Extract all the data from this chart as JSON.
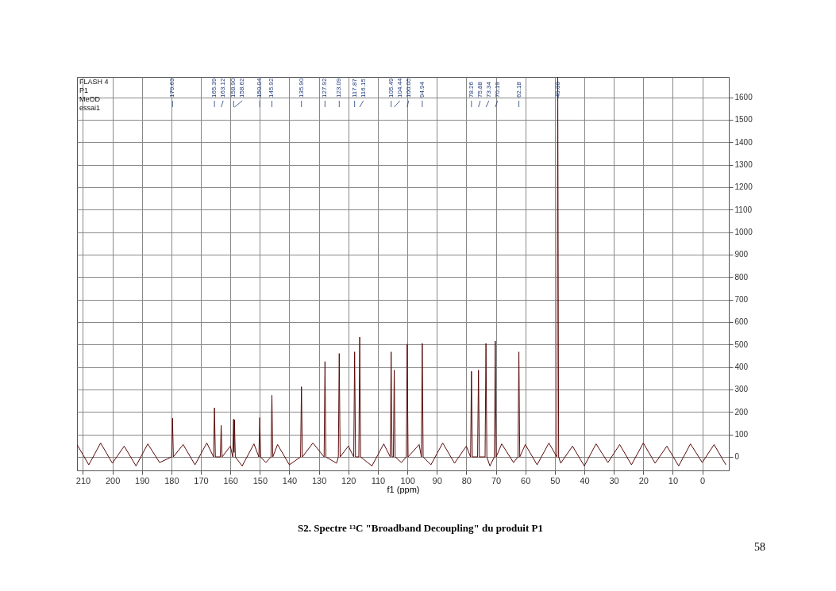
{
  "chart_data": {
    "type": "line",
    "title": "S2. Spectre ¹³C \"Broadband Decoupling\" du produit P1",
    "xlabel": "f1 (ppm)",
    "xlim": [
      212,
      -9
    ],
    "ylim": [
      -60,
      1690
    ],
    "xticks": [
      210,
      200,
      190,
      180,
      170,
      160,
      150,
      140,
      130,
      120,
      110,
      100,
      90,
      80,
      70,
      60,
      50,
      40,
      30,
      20,
      10,
      0
    ],
    "yticks": [
      0,
      100,
      200,
      300,
      400,
      500,
      600,
      700,
      800,
      900,
      1000,
      1100,
      1200,
      1300,
      1400,
      1500,
      1600
    ],
    "grid": true,
    "marker": "none",
    "line_style": "solid",
    "series": [
      {
        "color": "#5a0a0a",
        "x": [
          212,
          208,
          204,
          200,
          196,
          192,
          188,
          184,
          179.93,
          179.63,
          179.33,
          176,
          172,
          168,
          165.69,
          165.39,
          165.09,
          163.42,
          163.12,
          162.82,
          160,
          159.2,
          158.9,
          158.76,
          158.62,
          158.32,
          156,
          152,
          150.34,
          150.04,
          149.74,
          148,
          146.22,
          145.92,
          145.62,
          144,
          140,
          136.2,
          135.9,
          135.6,
          132,
          128.22,
          127.92,
          127.62,
          124,
          123.39,
          123.09,
          122.79,
          120,
          118.17,
          117.87,
          117.57,
          116.45,
          116.15,
          115.85,
          112,
          108,
          105.79,
          105.49,
          105.19,
          104.74,
          104.44,
          104.14,
          102,
          100.35,
          100.05,
          99.75,
          96,
          95.24,
          94.94,
          94.64,
          92,
          88,
          84,
          80,
          78.56,
          78.26,
          77.96,
          76.18,
          75.88,
          75.58,
          73.64,
          73.34,
          73.04,
          72,
          70.49,
          70.19,
          69.89,
          68,
          64,
          62.48,
          62.18,
          61.88,
          60,
          56,
          52,
          49.3,
          49,
          48.7,
          48,
          44,
          40,
          36,
          32,
          28,
          24,
          20,
          16,
          12,
          8,
          4,
          0,
          -4,
          -8
        ],
        "values": [
          55,
          -35,
          62,
          -28,
          48,
          -40,
          58,
          -25,
          0,
          172,
          0,
          55,
          -35,
          62,
          0,
          218,
          0,
          0,
          140,
          0,
          48,
          0,
          168,
          20,
          165,
          0,
          -40,
          58,
          0,
          175,
          0,
          -25,
          0,
          274,
          0,
          55,
          -35,
          0,
          312,
          0,
          62,
          0,
          424,
          0,
          -28,
          0,
          460,
          0,
          48,
          0,
          467,
          0,
          0,
          533,
          0,
          -40,
          58,
          0,
          467,
          0,
          0,
          386,
          0,
          -25,
          0,
          502,
          0,
          55,
          0,
          505,
          0,
          -35,
          62,
          -28,
          48,
          0,
          381,
          0,
          0,
          386,
          0,
          0,
          505,
          0,
          -40,
          0,
          515,
          0,
          58,
          -25,
          0,
          467,
          0,
          55,
          -35,
          62,
          0,
          1690,
          0,
          -28,
          48,
          -40,
          58,
          -25,
          55,
          -35,
          62,
          -28,
          48,
          -40,
          58,
          -25,
          55,
          -35
        ]
      }
    ],
    "annotations": [
      "FLASH 4",
      "P1",
      "MeOD",
      "essai1",
      {
        "text": "179.63",
        "x": 179.63
      },
      {
        "text": "165.39",
        "x": 165.39
      },
      {
        "text": "163.12",
        "x": 163.12
      },
      {
        "text": "158.90",
        "x": 158.9
      },
      {
        "text": "158.62",
        "x": 158.62
      },
      {
        "text": "150.04",
        "x": 150.04
      },
      {
        "text": "145.92",
        "x": 145.92
      },
      {
        "text": "135.90",
        "x": 135.9
      },
      {
        "text": "127.92",
        "x": 127.92
      },
      {
        "text": "123.09",
        "x": 123.09
      },
      {
        "text": "117.87",
        "x": 117.87
      },
      {
        "text": "116.15",
        "x": 116.15
      },
      {
        "text": "105.49",
        "x": 105.49
      },
      {
        "text": "104.44",
        "x": 104.44
      },
      {
        "text": "100.05",
        "x": 100.05
      },
      {
        "text": "94.94",
        "x": 94.94
      },
      {
        "text": "78.26",
        "x": 78.26
      },
      {
        "text": "75.88",
        "x": 75.88
      },
      {
        "text": "73.34",
        "x": 73.34
      },
      {
        "text": "70.19",
        "x": 70.19
      },
      {
        "text": "62.18",
        "x": 62.18
      },
      {
        "text": "49.00",
        "x": 49
      },
      "58"
    ]
  }
}
